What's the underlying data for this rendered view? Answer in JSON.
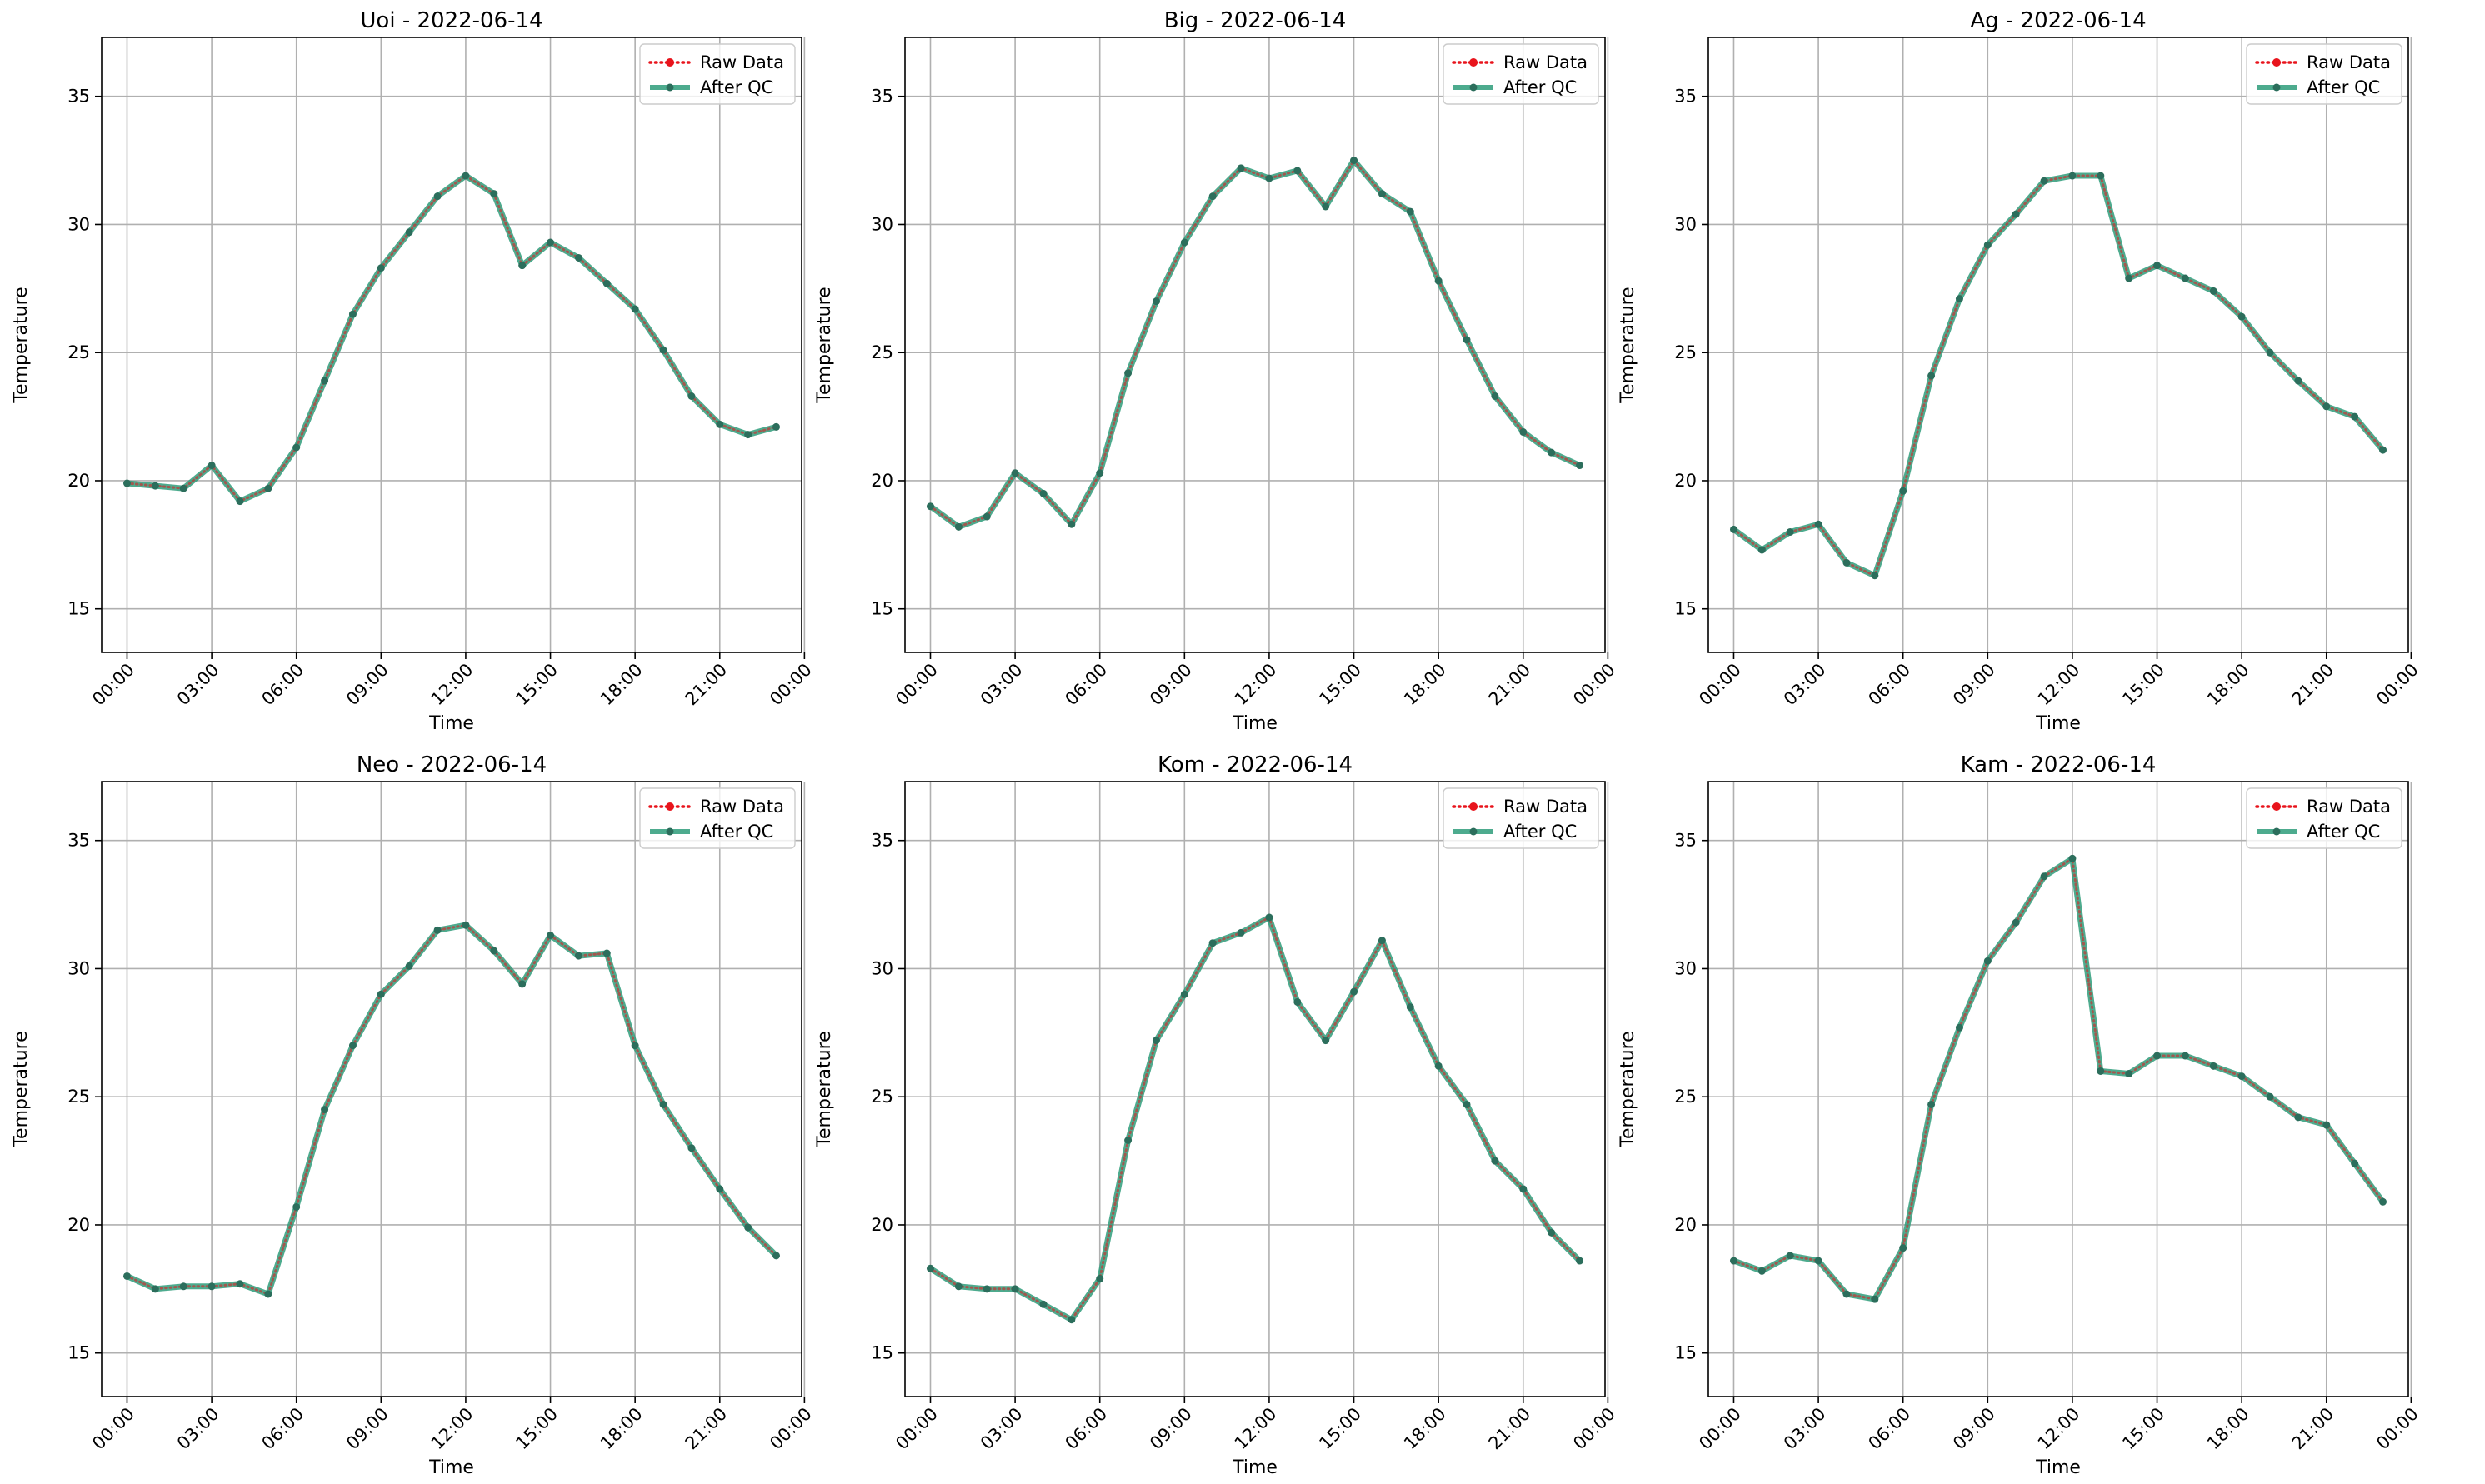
{
  "chart_data": [
    {
      "type": "line",
      "title": "Uoi - 2022-06-14",
      "xlabel": "Time",
      "ylabel": "Temperature",
      "ylim": [
        13.3,
        37.3
      ],
      "yticks": [
        15,
        20,
        25,
        30,
        35
      ],
      "xlim": [
        -0.9,
        23.9
      ],
      "xticks": [
        0,
        3,
        6,
        9,
        12,
        15,
        18,
        21,
        24
      ],
      "xtick_labels": [
        "00:00",
        "03:00",
        "06:00",
        "09:00",
        "12:00",
        "15:00",
        "18:00",
        "21:00",
        "00:00"
      ],
      "grid": true,
      "legend_position": "upper right",
      "x": [
        0,
        1,
        2,
        3,
        4,
        5,
        6,
        7,
        8,
        9,
        10,
        11,
        12,
        13,
        14,
        15,
        16,
        17,
        18,
        19,
        20,
        21,
        22,
        23
      ],
      "series": [
        {
          "name": "Raw Data",
          "color": "#e8141c",
          "style": "dotted",
          "values": [
            19.9,
            19.8,
            19.7,
            20.6,
            19.2,
            19.7,
            21.3,
            23.9,
            26.5,
            28.3,
            29.7,
            31.1,
            31.9,
            31.2,
            28.4,
            29.3,
            28.7,
            27.7,
            26.7,
            25.1,
            23.3,
            22.2,
            21.8,
            22.1
          ]
        },
        {
          "name": "After QC",
          "color": "#2e9c7a",
          "style": "solid",
          "values": [
            19.9,
            19.8,
            19.7,
            20.6,
            19.2,
            19.7,
            21.3,
            23.9,
            26.5,
            28.3,
            29.7,
            31.1,
            31.9,
            31.2,
            28.4,
            29.3,
            28.7,
            27.7,
            26.7,
            25.1,
            23.3,
            22.2,
            21.8,
            22.1
          ]
        }
      ]
    },
    {
      "type": "line",
      "title": "Big - 2022-06-14",
      "xlabel": "Time",
      "ylabel": "Temperature",
      "ylim": [
        13.3,
        37.3
      ],
      "yticks": [
        15,
        20,
        25,
        30,
        35
      ],
      "xlim": [
        -0.9,
        23.9
      ],
      "xticks": [
        0,
        3,
        6,
        9,
        12,
        15,
        18,
        21,
        24
      ],
      "xtick_labels": [
        "00:00",
        "03:00",
        "06:00",
        "09:00",
        "12:00",
        "15:00",
        "18:00",
        "21:00",
        "00:00"
      ],
      "grid": true,
      "legend_position": "upper right",
      "x": [
        0,
        1,
        2,
        3,
        4,
        5,
        6,
        7,
        8,
        9,
        10,
        11,
        12,
        13,
        14,
        15,
        16,
        17,
        18,
        19,
        20,
        21,
        22,
        23
      ],
      "series": [
        {
          "name": "Raw Data",
          "color": "#e8141c",
          "style": "dotted",
          "values": [
            19.0,
            18.2,
            18.6,
            20.3,
            19.5,
            18.3,
            20.3,
            24.2,
            27.0,
            29.3,
            31.1,
            32.2,
            31.8,
            32.1,
            30.7,
            32.5,
            31.2,
            30.5,
            27.8,
            25.5,
            23.3,
            21.9,
            21.1,
            20.6
          ]
        },
        {
          "name": "After QC",
          "color": "#2e9c7a",
          "style": "solid",
          "values": [
            19.0,
            18.2,
            18.6,
            20.3,
            19.5,
            18.3,
            20.3,
            24.2,
            27.0,
            29.3,
            31.1,
            32.2,
            31.8,
            32.1,
            30.7,
            32.5,
            31.2,
            30.5,
            27.8,
            25.5,
            23.3,
            21.9,
            21.1,
            20.6
          ]
        }
      ]
    },
    {
      "type": "line",
      "title": "Ag - 2022-06-14",
      "xlabel": "Time",
      "ylabel": "Temperature",
      "ylim": [
        13.3,
        37.3
      ],
      "yticks": [
        15,
        20,
        25,
        30,
        35
      ],
      "xlim": [
        -0.9,
        23.9
      ],
      "xticks": [
        0,
        3,
        6,
        9,
        12,
        15,
        18,
        21,
        24
      ],
      "xtick_labels": [
        "00:00",
        "03:00",
        "06:00",
        "09:00",
        "12:00",
        "15:00",
        "18:00",
        "21:00",
        "00:00"
      ],
      "grid": true,
      "legend_position": "upper right",
      "x": [
        0,
        1,
        2,
        3,
        4,
        5,
        6,
        7,
        8,
        9,
        10,
        11,
        12,
        13,
        14,
        15,
        16,
        17,
        18,
        19,
        20,
        21,
        22,
        23
      ],
      "series": [
        {
          "name": "Raw Data",
          "color": "#e8141c",
          "style": "dotted",
          "values": [
            18.1,
            17.3,
            18.0,
            18.3,
            16.8,
            16.3,
            19.6,
            24.1,
            27.1,
            29.2,
            30.4,
            31.7,
            31.9,
            31.9,
            27.9,
            28.4,
            27.9,
            27.4,
            26.4,
            25.0,
            23.9,
            22.9,
            22.5,
            21.2
          ]
        },
        {
          "name": "After QC",
          "color": "#2e9c7a",
          "style": "solid",
          "values": [
            18.1,
            17.3,
            18.0,
            18.3,
            16.8,
            16.3,
            19.6,
            24.1,
            27.1,
            29.2,
            30.4,
            31.7,
            31.9,
            31.9,
            27.9,
            28.4,
            27.9,
            27.4,
            26.4,
            25.0,
            23.9,
            22.9,
            22.5,
            21.2
          ]
        }
      ]
    },
    {
      "type": "line",
      "title": "Neo - 2022-06-14",
      "xlabel": "Time",
      "ylabel": "Temperature",
      "ylim": [
        13.3,
        37.3
      ],
      "yticks": [
        15,
        20,
        25,
        30,
        35
      ],
      "xlim": [
        -0.9,
        23.9
      ],
      "xticks": [
        0,
        3,
        6,
        9,
        12,
        15,
        18,
        21,
        24
      ],
      "xtick_labels": [
        "00:00",
        "03:00",
        "06:00",
        "09:00",
        "12:00",
        "15:00",
        "18:00",
        "21:00",
        "00:00"
      ],
      "grid": true,
      "legend_position": "upper right",
      "x": [
        0,
        1,
        2,
        3,
        4,
        5,
        6,
        7,
        8,
        9,
        10,
        11,
        12,
        13,
        14,
        15,
        16,
        17,
        18,
        19,
        20,
        21,
        22,
        23
      ],
      "series": [
        {
          "name": "Raw Data",
          "color": "#e8141c",
          "style": "dotted",
          "values": [
            18.0,
            17.5,
            17.6,
            17.6,
            17.7,
            17.3,
            20.7,
            24.5,
            27.0,
            29.0,
            30.1,
            31.5,
            31.7,
            30.7,
            29.4,
            31.3,
            30.5,
            30.6,
            27.0,
            24.7,
            23.0,
            21.4,
            19.9,
            18.8
          ]
        },
        {
          "name": "After QC",
          "color": "#2e9c7a",
          "style": "solid",
          "values": [
            18.0,
            17.5,
            17.6,
            17.6,
            17.7,
            17.3,
            20.7,
            24.5,
            27.0,
            29.0,
            30.1,
            31.5,
            31.7,
            30.7,
            29.4,
            31.3,
            30.5,
            30.6,
            27.0,
            24.7,
            23.0,
            21.4,
            19.9,
            18.8
          ]
        }
      ]
    },
    {
      "type": "line",
      "title": "Kom - 2022-06-14",
      "xlabel": "Time",
      "ylabel": "Temperature",
      "ylim": [
        13.3,
        37.3
      ],
      "yticks": [
        15,
        20,
        25,
        30,
        35
      ],
      "xlim": [
        -0.9,
        23.9
      ],
      "xticks": [
        0,
        3,
        6,
        9,
        12,
        15,
        18,
        21,
        24
      ],
      "xtick_labels": [
        "00:00",
        "03:00",
        "06:00",
        "09:00",
        "12:00",
        "15:00",
        "18:00",
        "21:00",
        "00:00"
      ],
      "grid": true,
      "legend_position": "upper right",
      "x": [
        0,
        1,
        2,
        3,
        4,
        5,
        6,
        7,
        8,
        9,
        10,
        11,
        12,
        13,
        14,
        15,
        16,
        17,
        18,
        19,
        20,
        21,
        22,
        23
      ],
      "series": [
        {
          "name": "Raw Data",
          "color": "#e8141c",
          "style": "dotted",
          "values": [
            18.3,
            17.6,
            17.5,
            17.5,
            16.9,
            16.3,
            17.9,
            23.3,
            27.2,
            29.0,
            31.0,
            31.4,
            32.0,
            28.7,
            27.2,
            29.1,
            31.1,
            28.5,
            26.2,
            24.7,
            22.5,
            21.4,
            19.7,
            18.6
          ]
        },
        {
          "name": "After QC",
          "color": "#2e9c7a",
          "style": "solid",
          "values": [
            18.3,
            17.6,
            17.5,
            17.5,
            16.9,
            16.3,
            17.9,
            23.3,
            27.2,
            29.0,
            31.0,
            31.4,
            32.0,
            28.7,
            27.2,
            29.1,
            31.1,
            28.5,
            26.2,
            24.7,
            22.5,
            21.4,
            19.7,
            18.6
          ]
        }
      ]
    },
    {
      "type": "line",
      "title": "Kam - 2022-06-14",
      "xlabel": "Time",
      "ylabel": "Temperature",
      "ylim": [
        13.3,
        37.3
      ],
      "yticks": [
        15,
        20,
        25,
        30,
        35
      ],
      "xlim": [
        -0.9,
        23.9
      ],
      "xticks": [
        0,
        3,
        6,
        9,
        12,
        15,
        18,
        21,
        24
      ],
      "xtick_labels": [
        "00:00",
        "03:00",
        "06:00",
        "09:00",
        "12:00",
        "15:00",
        "18:00",
        "21:00",
        "00:00"
      ],
      "grid": true,
      "legend_position": "upper right",
      "x": [
        0,
        1,
        2,
        3,
        4,
        5,
        6,
        7,
        8,
        9,
        10,
        11,
        12,
        13,
        14,
        15,
        16,
        17,
        18,
        19,
        20,
        21,
        22,
        23
      ],
      "series": [
        {
          "name": "Raw Data",
          "color": "#e8141c",
          "style": "dotted",
          "values": [
            18.6,
            18.2,
            18.8,
            18.6,
            17.3,
            17.1,
            19.1,
            24.7,
            27.7,
            30.3,
            31.8,
            33.6,
            34.3,
            26.0,
            25.9,
            26.6,
            26.6,
            26.2,
            25.8,
            25.0,
            24.2,
            23.9,
            22.4,
            20.9
          ]
        },
        {
          "name": "After QC",
          "color": "#2e9c7a",
          "style": "solid",
          "values": [
            18.6,
            18.2,
            18.8,
            18.6,
            17.3,
            17.1,
            19.1,
            24.7,
            27.7,
            30.3,
            31.8,
            33.6,
            34.3,
            26.0,
            25.9,
            26.6,
            26.6,
            26.2,
            25.8,
            25.0,
            24.2,
            23.9,
            22.4,
            20.9
          ]
        }
      ]
    }
  ]
}
